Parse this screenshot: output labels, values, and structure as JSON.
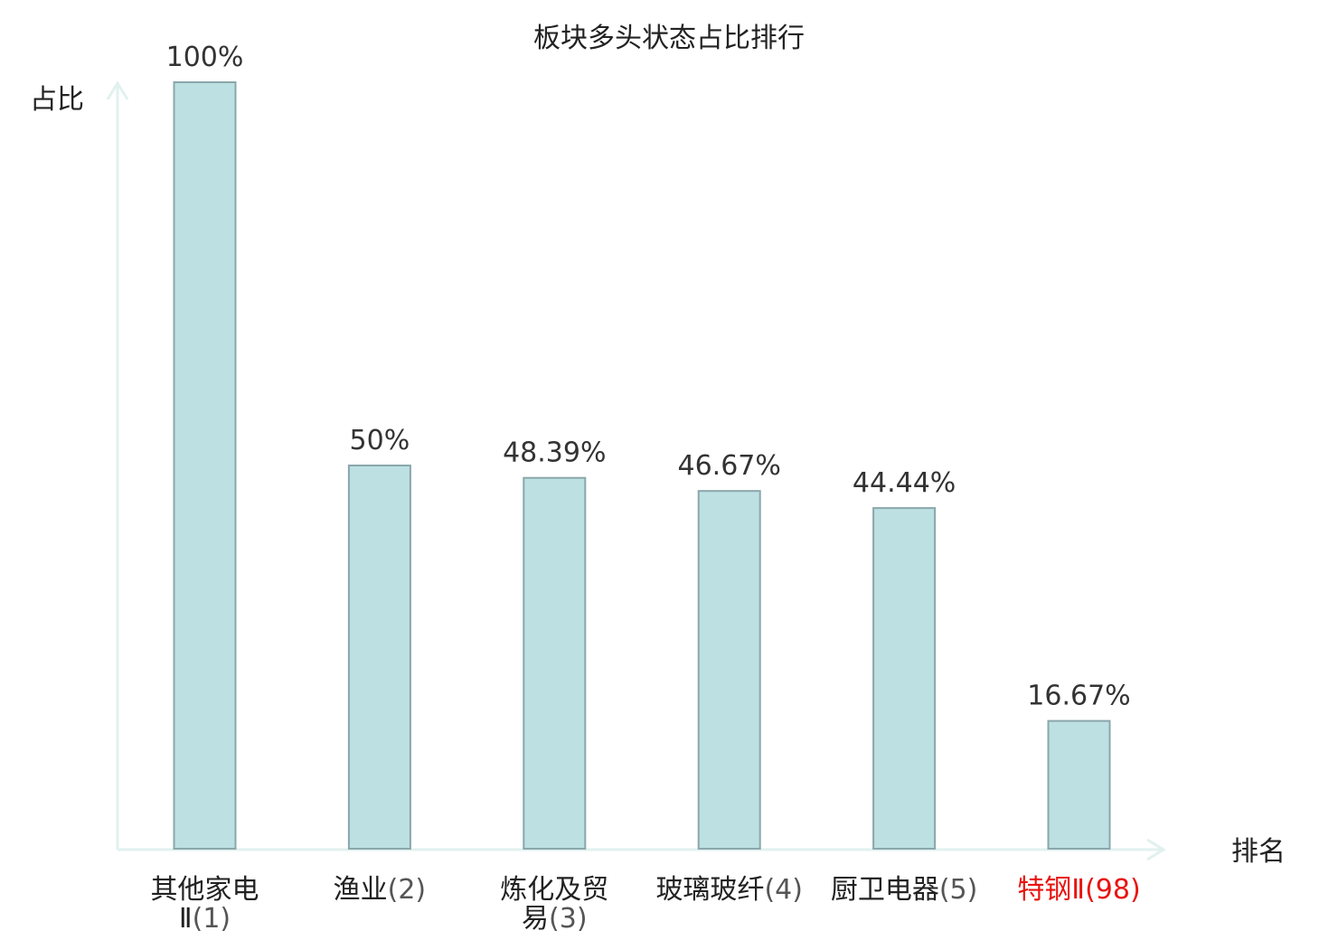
{
  "chart_data": {
    "type": "bar",
    "title": "板块多头状态占比排行",
    "ylabel": "占比",
    "xlabel": "排名",
    "ylim": [
      0,
      100
    ],
    "grid": false,
    "categories": [
      {
        "name": "其他家电",
        "name_line2": "Ⅱ",
        "rank": "(1)",
        "highlight": false
      },
      {
        "name": "渔业",
        "rank": "(2)",
        "highlight": false
      },
      {
        "name": "炼化及贸",
        "name_line2": "易",
        "rank": "(3)",
        "highlight": false
      },
      {
        "name": "玻璃玻纤",
        "rank": "(4)",
        "highlight": false
      },
      {
        "name": "厨卫电器",
        "rank": "(5)",
        "highlight": false
      },
      {
        "name": "特钢Ⅱ",
        "rank": "(98)",
        "highlight": true
      }
    ],
    "values": [
      100,
      50,
      48.39,
      46.67,
      44.44,
      16.67
    ],
    "value_labels": [
      "100%",
      "50%",
      "48.39%",
      "46.67%",
      "44.44%",
      "16.67%"
    ]
  },
  "colors": {
    "bar_fill": "#bde0e3",
    "bar_stroke": "#8aa7ab",
    "axis": "#e1f1ef",
    "highlight_label": "#e8130f"
  }
}
